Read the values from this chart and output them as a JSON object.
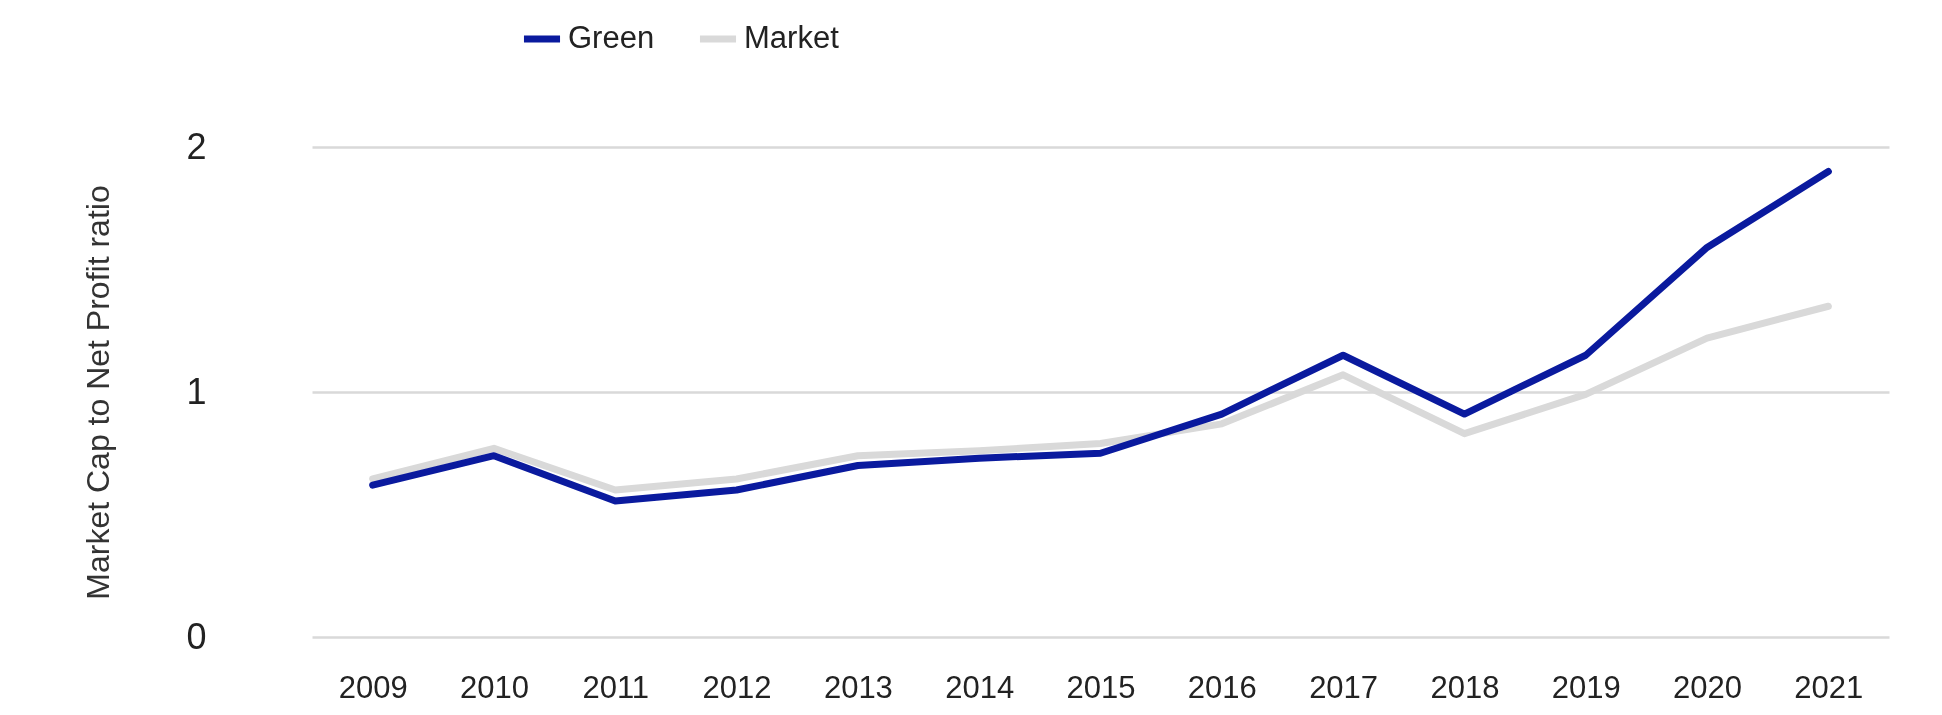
{
  "chart_data": {
    "type": "line",
    "ylabel": "Market Cap to Net Profit ratio",
    "categories": [
      "2009",
      "2010",
      "2011",
      "2012",
      "2013",
      "2014",
      "2015",
      "2016",
      "2017",
      "2018",
      "2019",
      "2020",
      "2021"
    ],
    "series": [
      {
        "name": "Green",
        "color": "#0a1a9e",
        "values": [
          0.62,
          0.74,
          0.555,
          0.6,
          0.7,
          0.73,
          0.75,
          0.91,
          1.15,
          0.91,
          1.15,
          1.59,
          1.9
        ]
      },
      {
        "name": "Market",
        "color": "#d9d9d9",
        "values": [
          0.645,
          0.77,
          0.6,
          0.645,
          0.74,
          0.76,
          0.79,
          0.87,
          1.07,
          0.83,
          0.99,
          1.22,
          1.35
        ]
      }
    ],
    "ylim": [
      0,
      2
    ],
    "yticks": [
      0,
      1,
      2
    ],
    "grid": "y",
    "legend": "top",
    "line_style": "solid"
  }
}
